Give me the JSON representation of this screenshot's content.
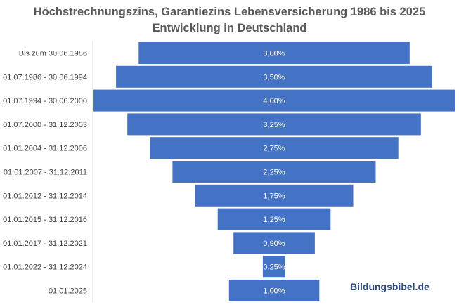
{
  "chart_data": {
    "type": "bar",
    "orientation": "horizontal-centered",
    "title_line1": "Höchstrechnungszins, Garantiezins Lebensversicherung 1986 bis 2025",
    "title_line2": "Entwicklung in Deutschland",
    "categories": [
      "Bis zum 30.06.1986",
      "01.07.1986 - 30.06.1994",
      "01.07.1994 - 30.06.2000",
      "01.07.2000 - 31.12.2003",
      "01.01.2004 - 31.12.2006",
      "01.01.2007 - 31.12.2011",
      "01.01.2012 - 31.12.2014",
      "01.01.2015 - 31.12.2016",
      "01.01.2017 - 31.12.2021",
      "01.01.2022 - 31.12.2024",
      "01.01.2025"
    ],
    "values": [
      3.0,
      3.5,
      4.0,
      3.25,
      2.75,
      2.25,
      1.75,
      1.25,
      0.9,
      0.25,
      1.0
    ],
    "value_labels": [
      "3,00%",
      "3,50%",
      "4,00%",
      "3,25%",
      "2,75%",
      "2,25%",
      "1,75%",
      "1,25%",
      "0,90%",
      "0,25%",
      "1,00%"
    ],
    "bar_color": "#4472c4",
    "xlim": [
      0,
      4.0
    ],
    "grid": false,
    "legend": "none"
  },
  "watermark": "Bildungsbibel.de"
}
